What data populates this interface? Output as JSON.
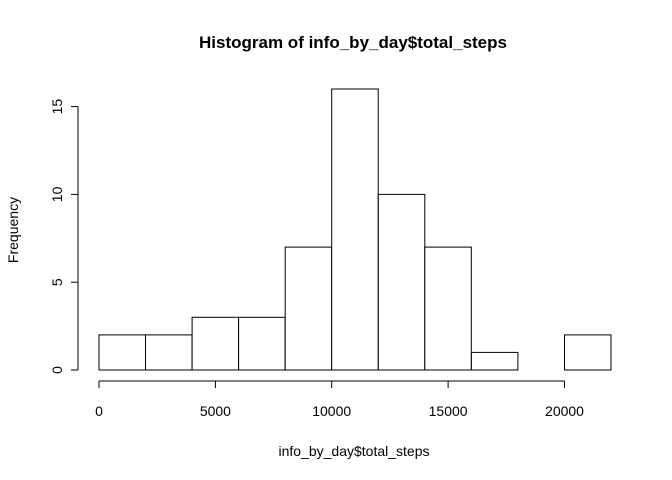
{
  "chart_data": {
    "type": "histogram",
    "title": "Histogram of info_by_day$total_steps",
    "xlabel": "info_by_day$total_steps",
    "ylabel": "Frequency",
    "bins": [
      {
        "start": 0,
        "end": 2000,
        "count": 2
      },
      {
        "start": 2000,
        "end": 4000,
        "count": 2
      },
      {
        "start": 4000,
        "end": 6000,
        "count": 3
      },
      {
        "start": 6000,
        "end": 8000,
        "count": 3
      },
      {
        "start": 8000,
        "end": 10000,
        "count": 7
      },
      {
        "start": 10000,
        "end": 12000,
        "count": 16
      },
      {
        "start": 12000,
        "end": 14000,
        "count": 10
      },
      {
        "start": 14000,
        "end": 16000,
        "count": 7
      },
      {
        "start": 16000,
        "end": 18000,
        "count": 1
      },
      {
        "start": 18000,
        "end": 20000,
        "count": 0
      },
      {
        "start": 20000,
        "end": 22000,
        "count": 2
      }
    ],
    "xlim": [
      0,
      22000
    ],
    "ylim": [
      0,
      16
    ],
    "x_ticks": [
      0,
      5000,
      10000,
      15000,
      20000
    ],
    "y_ticks": [
      0,
      5,
      10,
      15
    ],
    "grid": false,
    "bar_fill": "#ffffff",
    "bar_stroke": "#000000"
  }
}
